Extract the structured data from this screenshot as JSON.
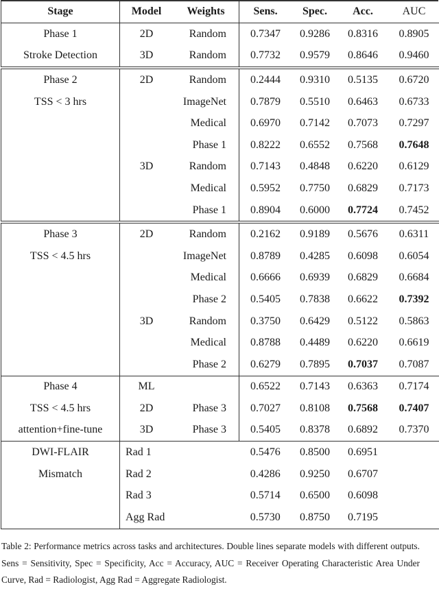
{
  "headers": {
    "stage": "Stage",
    "model": "Model",
    "weights": "Weights",
    "sens": "Sens.",
    "spec": "Spec.",
    "acc": "Acc.",
    "auc": "AUC"
  },
  "sections": [
    {
      "stage": [
        "Phase 1",
        "Stroke Detection"
      ],
      "rows": [
        {
          "model": "2D",
          "weights": "Random",
          "sens": "0.7347",
          "spec": "0.9286",
          "acc": "0.8316",
          "auc": "0.8905"
        },
        {
          "model": "3D",
          "weights": "Random",
          "sens": "0.7732",
          "spec": "0.9579",
          "acc": "0.8646",
          "auc": "0.9460"
        }
      ]
    },
    {
      "stage": [
        "Phase 2",
        "TSS < 3 hrs"
      ],
      "rows": [
        {
          "model": "2D",
          "weights": "Random",
          "sens": "0.2444",
          "spec": "0.9310",
          "acc": "0.5135",
          "auc": "0.6720"
        },
        {
          "model": "",
          "weights": "ImageNet",
          "sens": "0.7879",
          "spec": "0.5510",
          "acc": "0.6463",
          "auc": "0.6733"
        },
        {
          "model": "",
          "weights": "Medical",
          "sens": "0.6970",
          "spec": "0.7142",
          "acc": "0.7073",
          "auc": "0.7297"
        },
        {
          "model": "",
          "weights": "Phase 1",
          "sens": "0.8222",
          "spec": "0.6552",
          "acc": "0.7568",
          "auc": "0.7648",
          "bold": [
            "auc"
          ]
        },
        {
          "model": "3D",
          "weights": "Random",
          "sens": "0.7143",
          "spec": "0.4848",
          "acc": "0.6220",
          "auc": "0.6129"
        },
        {
          "model": "",
          "weights": "Medical",
          "sens": "0.5952",
          "spec": "0.7750",
          "acc": "0.6829",
          "auc": "0.7173"
        },
        {
          "model": "",
          "weights": "Phase 1",
          "sens": "0.8904",
          "spec": "0.6000",
          "acc": "0.7724",
          "auc": "0.7452",
          "bold": [
            "acc"
          ]
        }
      ]
    },
    {
      "stage": [
        "Phase 3",
        "TSS < 4.5 hrs"
      ],
      "rows": [
        {
          "model": "2D",
          "weights": "Random",
          "sens": "0.2162",
          "spec": "0.9189",
          "acc": "0.5676",
          "auc": "0.6311"
        },
        {
          "model": "",
          "weights": "ImageNet",
          "sens": "0.8789",
          "spec": "0.4285",
          "acc": "0.6098",
          "auc": "0.6054"
        },
        {
          "model": "",
          "weights": "Medical",
          "sens": "0.6666",
          "spec": "0.6939",
          "acc": "0.6829",
          "auc": "0.6684"
        },
        {
          "model": "",
          "weights": "Phase 2",
          "sens": "0.5405",
          "spec": "0.7838",
          "acc": "0.6622",
          "auc": "0.7392",
          "bold": [
            "auc"
          ]
        },
        {
          "model": "3D",
          "weights": "Random",
          "sens": "0.3750",
          "spec": "0.6429",
          "acc": "0.5122",
          "auc": "0.5863"
        },
        {
          "model": "",
          "weights": "Medical",
          "sens": "0.8788",
          "spec": "0.4489",
          "acc": "0.6220",
          "auc": "0.6619"
        },
        {
          "model": "",
          "weights": "Phase 2",
          "sens": "0.6279",
          "spec": "0.7895",
          "acc": "0.7037",
          "auc": "0.7087",
          "bold": [
            "acc"
          ]
        }
      ]
    },
    {
      "stage": [
        "Phase 4",
        "TSS < 4.5 hrs",
        "attention+fine-tune"
      ],
      "rows": [
        {
          "model": "ML",
          "weights": "",
          "sens": "0.6522",
          "spec": "0.7143",
          "acc": "0.6363",
          "auc": "0.7174"
        },
        {
          "model": "2D",
          "weights": "Phase 3",
          "sens": "0.7027",
          "spec": "0.8108",
          "acc": "0.7568",
          "auc": "0.7407",
          "bold": [
            "acc",
            "auc"
          ]
        },
        {
          "model": "3D",
          "weights": "Phase 3",
          "sens": "0.5405",
          "spec": "0.8378",
          "acc": "0.6892",
          "auc": "0.7370"
        }
      ]
    },
    {
      "stage": [
        "DWI-FLAIR",
        "Mismatch"
      ],
      "radiologist": true,
      "rows": [
        {
          "model": "Rad 1",
          "weights": "",
          "sens": "0.5476",
          "spec": "0.8500",
          "acc": "0.6951",
          "auc": ""
        },
        {
          "model": "Rad 2",
          "weights": "",
          "sens": "0.4286",
          "spec": "0.9250",
          "acc": "0.6707",
          "auc": ""
        },
        {
          "model": "Rad 3",
          "weights": "",
          "sens": "0.5714",
          "spec": "0.6500",
          "acc": "0.6098",
          "auc": ""
        },
        {
          "model": "Agg Rad",
          "weights": "",
          "sens": "0.5730",
          "spec": "0.8750",
          "acc": "0.7195",
          "auc": ""
        }
      ]
    }
  ],
  "caption": "Table 2:   Performance metrics across tasks and architectures. Double lines separate models with different outputs. Sens = Sensitivity, Spec = Specificity, Acc = Accuracy, AUC = Receiver Operating Characteristic Area Under Curve, Rad = Radiologist, Agg Rad = Aggregate Radiologist."
}
